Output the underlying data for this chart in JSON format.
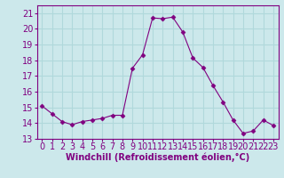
{
  "x": [
    0,
    1,
    2,
    3,
    4,
    5,
    6,
    7,
    8,
    9,
    10,
    11,
    12,
    13,
    14,
    15,
    16,
    17,
    18,
    19,
    20,
    21,
    22,
    23
  ],
  "y": [
    15.1,
    14.6,
    14.1,
    13.9,
    14.1,
    14.2,
    14.3,
    14.5,
    14.5,
    17.5,
    18.35,
    20.7,
    20.65,
    20.75,
    19.8,
    18.15,
    17.55,
    16.4,
    15.35,
    14.2,
    13.35,
    13.5,
    14.2,
    13.85
  ],
  "line_color": "#800080",
  "marker": "D",
  "marker_size": 2.5,
  "bg_color": "#cce8eb",
  "grid_color": "#b0d8db",
  "xlabel": "Windchill (Refroidissement éolien,°C)",
  "xlabel_fontsize": 7,
  "tick_fontsize": 7,
  "ylim": [
    13,
    21.5
  ],
  "xlim": [
    -0.5,
    23.5
  ],
  "yticks": [
    13,
    14,
    15,
    16,
    17,
    18,
    19,
    20,
    21
  ],
  "xticks": [
    0,
    1,
    2,
    3,
    4,
    5,
    6,
    7,
    8,
    9,
    10,
    11,
    12,
    13,
    14,
    15,
    16,
    17,
    18,
    19,
    20,
    21,
    22,
    23
  ],
  "tick_color": "#800080",
  "label_color": "#800080",
  "spine_color": "#800080"
}
